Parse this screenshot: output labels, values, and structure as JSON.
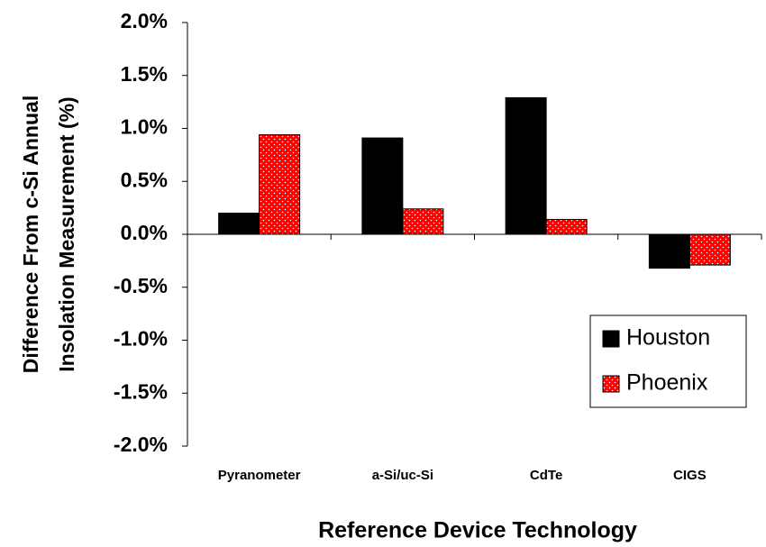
{
  "chart_data": {
    "type": "bar",
    "xlabel": "Reference Device Technology",
    "ylabel": [
      "Difference From c-Si Annual",
      "Insolation Measurement (%)"
    ],
    "categories": [
      "Pyranometer",
      "a-Si/uc-Si",
      "CdTe",
      "CIGS"
    ],
    "series": [
      {
        "name": "Houston",
        "color": "#000000",
        "values": [
          0.2,
          0.91,
          1.29,
          -0.32
        ]
      },
      {
        "name": "Phoenix",
        "color": "#ff0000",
        "values": [
          0.94,
          0.24,
          0.14,
          -0.29
        ]
      }
    ],
    "ylim": [
      -2,
      2
    ],
    "yticks": [
      {
        "value": -2,
        "label": "-2.0%"
      },
      {
        "value": -1.5,
        "label": "-1.5%"
      },
      {
        "value": -1,
        "label": "-1.0%"
      },
      {
        "value": -0.5,
        "label": "-0.5%"
      },
      {
        "value": 0,
        "label": "0.0%"
      },
      {
        "value": 0.5,
        "label": "0.5%"
      },
      {
        "value": 1,
        "label": "1.0%"
      },
      {
        "value": 1.5,
        "label": "1.5%"
      },
      {
        "value": 2,
        "label": "2.0%"
      }
    ],
    "legend": "lower right"
  }
}
